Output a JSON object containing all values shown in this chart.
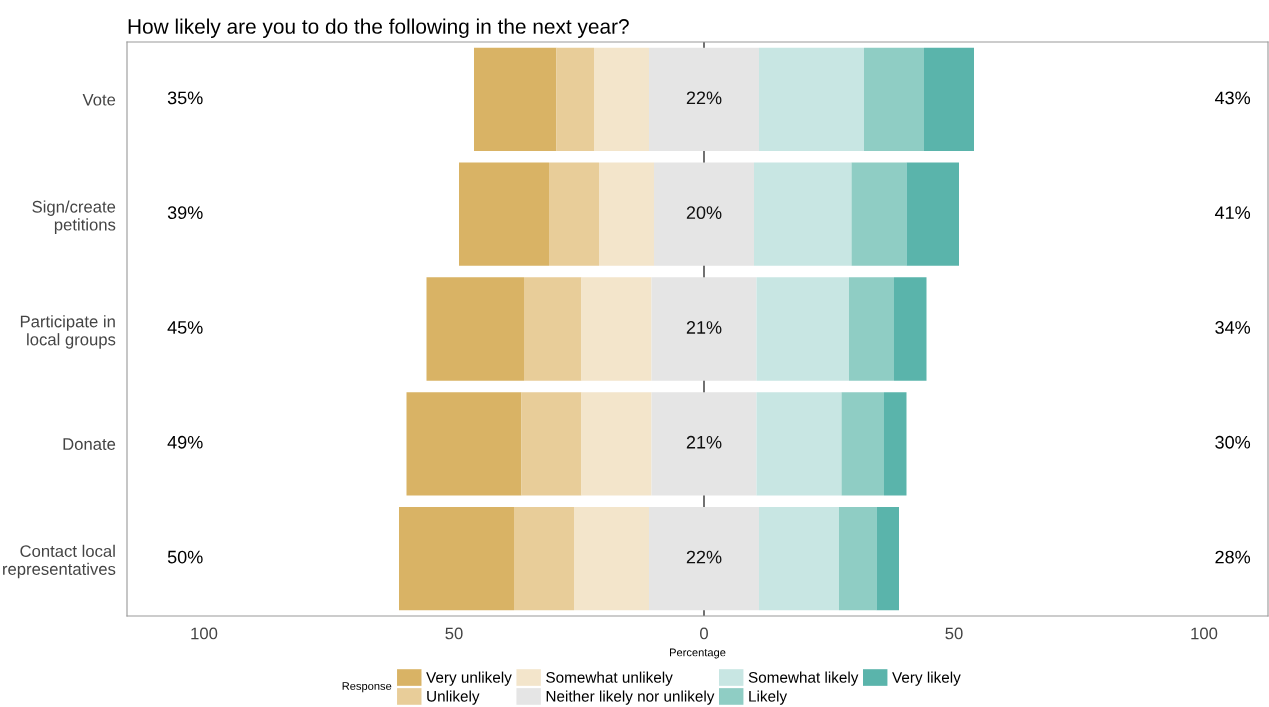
{
  "chart_data": {
    "type": "bar",
    "orientation": "horizontal",
    "title": "How likely are you to do the following in the next year?",
    "xlabel": "Percentage",
    "legend_title": "Response",
    "legend": "bottom",
    "grid": false,
    "categories": [
      "Vote",
      "Sign/create\npetitions",
      "Participate in\nlocal groups",
      "Donate",
      "Contact local\nrepresentatives"
    ],
    "series": [
      {
        "name": "Very unlikely",
        "color": "#d9b365",
        "base": [
          -46,
          -49,
          -55.5,
          -59.5,
          -61
        ],
        "values": [
          16.5,
          18,
          19.5,
          23,
          23
        ]
      },
      {
        "name": "Unlikely",
        "color": "#e8cd99",
        "base": [
          -29.5,
          -31,
          -36,
          -36.5,
          -38
        ],
        "values": [
          7.5,
          10,
          11.5,
          12,
          12
        ]
      },
      {
        "name": "Somewhat unlikely",
        "color": "#f3e5cb",
        "base": [
          -22,
          -21,
          -24.5,
          -24.5,
          -26
        ],
        "values": [
          11,
          11,
          14,
          14,
          15
        ]
      },
      {
        "name": "Neither likely nor unlikely",
        "color": "#e5e5e5",
        "base": [
          -11,
          -10,
          -10.5,
          -10.5,
          -11
        ],
        "values": [
          22,
          20,
          21,
          21,
          22
        ],
        "value_labels": [
          "22%",
          "20%",
          "21%",
          "21%",
          "22%"
        ]
      },
      {
        "name": "Somewhat likely",
        "color": "#c8e6e3",
        "base": [
          11,
          10,
          10.5,
          10.5,
          11
        ],
        "values": [
          21,
          19.5,
          18.5,
          17,
          16
        ]
      },
      {
        "name": "Likely",
        "color": "#8fcdc4",
        "base": [
          32,
          29.5,
          29,
          27.5,
          27
        ],
        "values": [
          12,
          11,
          9,
          8.5,
          7.5
        ]
      },
      {
        "name": "Very likely",
        "color": "#5ab4ab",
        "base": [
          44,
          40.5,
          38,
          36,
          34.5
        ],
        "values": [
          10,
          10.5,
          6.5,
          4.5,
          4.5
        ]
      }
    ],
    "xlim": [
      -115.4,
      112.8
    ],
    "xticks": [
      {
        "value": -100,
        "label": "100"
      },
      {
        "value": -50,
        "label": "50"
      },
      0,
      50,
      100
    ],
    "ref_lines": [
      {
        "axis": "x",
        "value": 0,
        "color": "#333333"
      }
    ],
    "annotations": [
      "35%",
      "39%",
      "45%",
      "49%",
      "50%",
      "43%",
      "41%",
      "34%",
      "30%",
      "28%"
    ]
  }
}
